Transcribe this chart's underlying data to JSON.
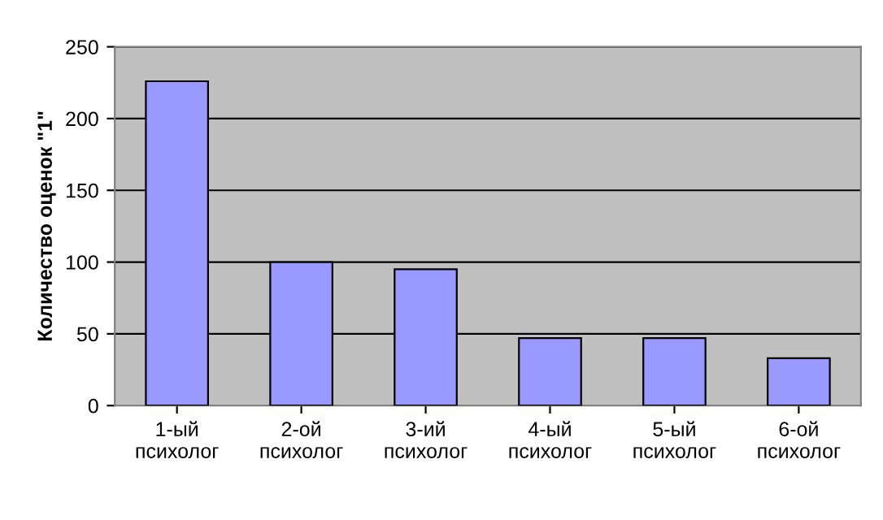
{
  "chart_data": {
    "type": "bar",
    "ylabel": "Количество оценок \"1\"",
    "categories": [
      "1-ый\nпсихолог",
      "2-ой\nпсихолог",
      "3-ий\nпсихолог",
      "4-ый\nпсихолог",
      "5-ый\nпсихолог",
      "6-ой\nпсихолог"
    ],
    "values": [
      226,
      100,
      95,
      47,
      47,
      33
    ],
    "color": "#9999ff",
    "ylim": [
      0,
      250
    ],
    "yticks": [
      0,
      50,
      100,
      150,
      200,
      250
    ],
    "grid": "y"
  }
}
